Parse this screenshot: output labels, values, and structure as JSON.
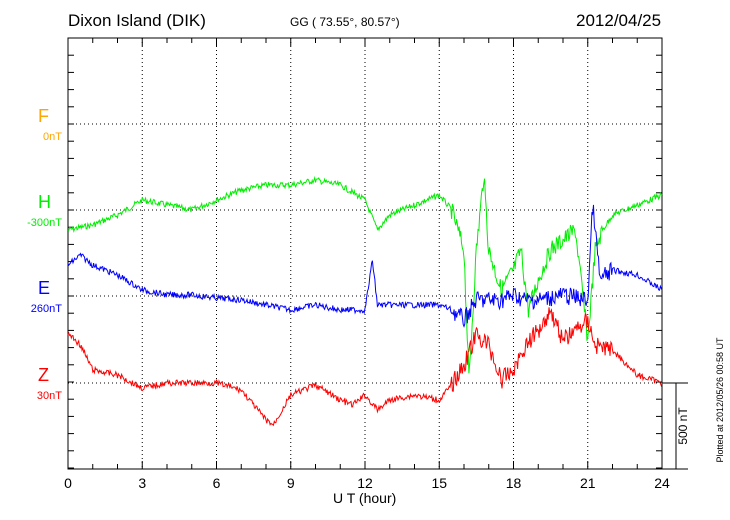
{
  "chart_data": {
    "type": "line",
    "title": "Dixon Island (DIK)",
    "subtitle": "GG ( 73.55°,  80.57°)",
    "date": "2012/04/25",
    "xlabel": "U T (hour)",
    "xlim": [
      0,
      24
    ],
    "xticks": [
      "0",
      "3",
      "6",
      "9",
      "12",
      "15",
      "18",
      "21",
      "24"
    ],
    "grid": true,
    "scale_bar": "500 nT",
    "footer": "Plotted at 2012/05/26 00:58 UT",
    "series": [
      {
        "name": "F",
        "baseline_label": "0nT",
        "color": "#ffa500",
        "x": [],
        "values": []
      },
      {
        "name": "H",
        "baseline_label": "-300nT",
        "color": "#00ee00",
        "x": [
          0,
          1,
          2,
          3,
          4,
          5,
          6,
          7,
          8,
          9,
          10,
          11,
          12,
          12.5,
          13,
          14,
          15,
          15.5,
          16,
          16.2,
          16.5,
          16.8,
          17,
          17.5,
          18,
          18.3,
          18.6,
          19,
          19.5,
          20,
          20.5,
          21,
          21.3,
          21.6,
          22,
          23,
          24
        ],
        "values": [
          -116,
          -87,
          -29,
          58,
          29,
          0,
          58,
          116,
          145,
          145,
          174,
          145,
          58,
          -116,
          -29,
          29,
          87,
          0,
          -232,
          -988,
          -232,
          203,
          -232,
          -465,
          -349,
          -232,
          -581,
          -407,
          -232,
          -174,
          -116,
          -756,
          -232,
          -116,
          -29,
          29,
          87
        ]
      },
      {
        "name": "E",
        "baseline_label": "260nT",
        "color": "#0000ff",
        "x": [
          0,
          0.5,
          1,
          2,
          3,
          4,
          5,
          6,
          7,
          8,
          9,
          10,
          11,
          12,
          12.3,
          12.5,
          13,
          14,
          15,
          15.5,
          16,
          16.5,
          17,
          17.5,
          18,
          18.5,
          19,
          20,
          21,
          21.2,
          21.5,
          22,
          23,
          24
        ],
        "values": [
          180,
          238,
          180,
          122,
          35,
          6,
          6,
          -12,
          -23,
          -52,
          -81,
          -52,
          -81,
          -81,
          209,
          -52,
          -52,
          -52,
          -52,
          -81,
          -139,
          -23,
          -23,
          -23,
          6,
          -23,
          -23,
          6,
          -23,
          529,
          93,
          151,
          122,
          35
        ]
      },
      {
        "name": "Z",
        "baseline_label": "30nT",
        "color": "#ff0000",
        "x": [
          0,
          0.5,
          1,
          2,
          3,
          4,
          5,
          6,
          7,
          8,
          8.3,
          9,
          10,
          11,
          11.5,
          12,
          12.5,
          13,
          14,
          15,
          15.5,
          16,
          16.5,
          17,
          17.5,
          18,
          18.5,
          19,
          19.5,
          20,
          20.5,
          21,
          21.3,
          22,
          23,
          24
        ],
        "values": [
          290,
          221,
          76,
          46,
          -29,
          0,
          0,
          0,
          -41,
          -215,
          -244,
          -70,
          -12,
          -99,
          -128,
          -70,
          -157,
          -99,
          -70,
          -99,
          -12,
          105,
          279,
          221,
          17,
          76,
          221,
          308,
          424,
          250,
          308,
          366,
          221,
          192,
          46,
          0
        ]
      }
    ]
  }
}
